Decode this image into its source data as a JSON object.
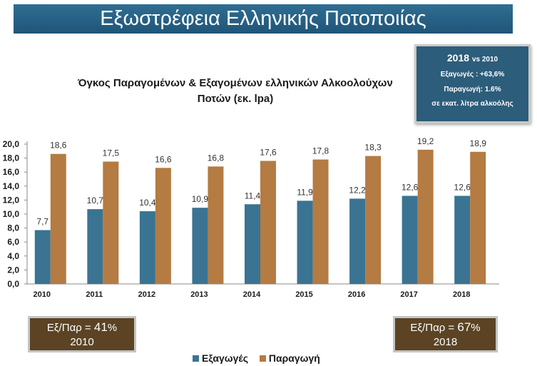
{
  "banner_title": "Εξωστρέφεια Ελληνικής Ποτοποιίας",
  "info_box": {
    "year": "2018",
    "vs": "vs 2010",
    "line1": "Εξαγωγές : +63,6%",
    "line2": "Παραγωγή: 1.6%",
    "line3": "σε εκατ. λίτρα αλκοόλης"
  },
  "ratio_2010": {
    "label": "Εξ/Παρ = ",
    "value": "41",
    "unit": "%",
    "year": "2010"
  },
  "ratio_2018": {
    "label": "Εξ/Παρ = ",
    "value": "67",
    "unit": "%",
    "year": "2018"
  },
  "colors": {
    "exports": "#3a7492",
    "production": "#b47b43",
    "banner": "#2a6587",
    "ratio_box": "#5b4323"
  },
  "chart_data": {
    "type": "bar",
    "title": "Όγκος Παραγομένων & Εξαγομένων ελληνικών Αλκοολούχων Ποτών (εκ. lpa)",
    "categories": [
      "2010",
      "2011",
      "2012",
      "2013",
      "2014",
      "2015",
      "2016",
      "2017",
      "2018"
    ],
    "series": [
      {
        "name": "Εξαγωγές",
        "values": [
          7.7,
          10.7,
          10.4,
          10.9,
          11.4,
          11.9,
          12.2,
          12.6,
          12.6
        ]
      },
      {
        "name": "Παραγωγή",
        "values": [
          18.6,
          17.5,
          16.6,
          16.8,
          17.6,
          17.8,
          18.3,
          19.2,
          18.9
        ]
      }
    ],
    "data_labels": [
      [
        "7,7",
        "10,7",
        "10,4",
        "10,9",
        "11,4",
        "11,9",
        "12,2",
        "12,6",
        "12,6"
      ],
      [
        "18,6",
        "17,5",
        "16,6",
        "16,8",
        "17,6",
        "17,8",
        "18,3",
        "19,2",
        "18,9"
      ]
    ],
    "yticks": [
      "0,0",
      "2,0",
      "4,0",
      "6,0",
      "8,0",
      "10,0",
      "12,0",
      "14,0",
      "16,0",
      "18,0",
      "20,0"
    ],
    "ylim": [
      0,
      20
    ],
    "grid": false,
    "legend_position": "bottom"
  }
}
